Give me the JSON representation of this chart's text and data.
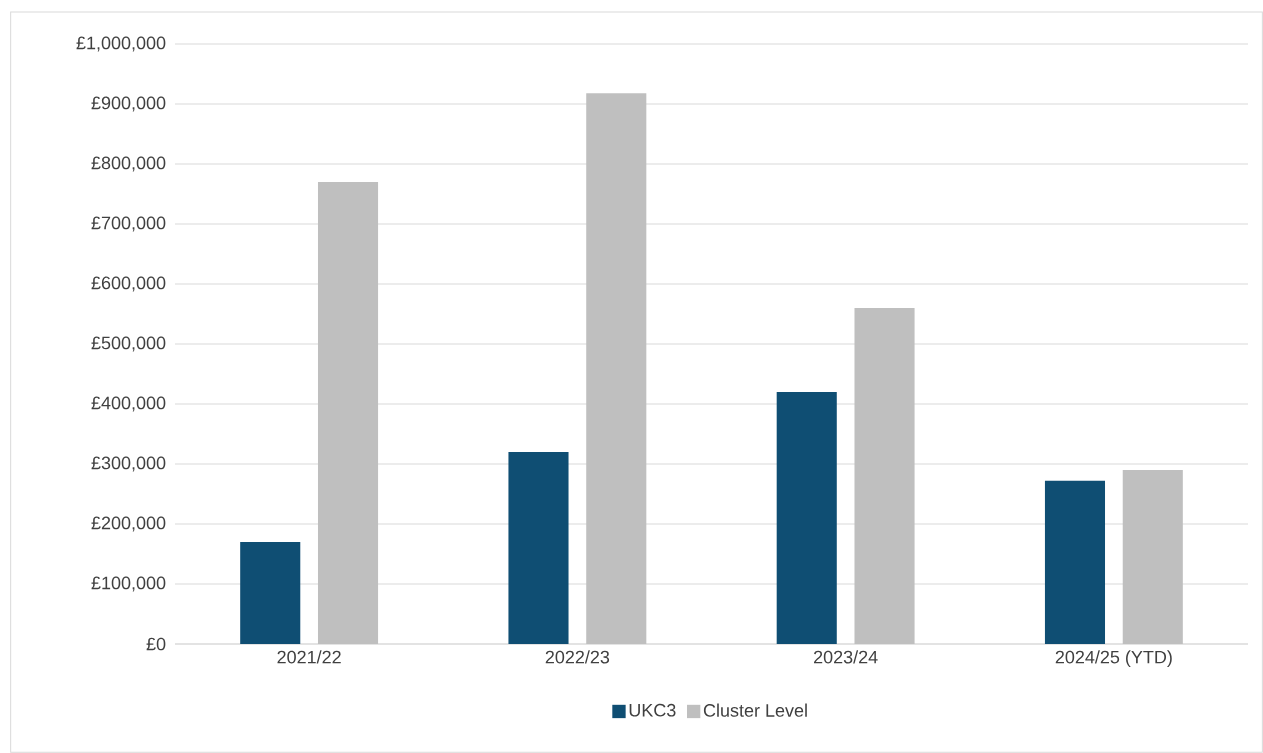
{
  "chart_data": {
    "type": "bar",
    "categories": [
      "2021/22",
      "2022/23",
      "2023/24",
      "2024/25 (YTD)"
    ],
    "series": [
      {
        "name": "UKC3",
        "color": "#0f4e73",
        "values": [
          170000,
          320000,
          420000,
          272000
        ]
      },
      {
        "name": "Cluster Level",
        "color": "#bfbfbf",
        "values": [
          770000,
          918000,
          560000,
          290000
        ]
      }
    ],
    "ylim": [
      0,
      1000000
    ],
    "yticks": [
      {
        "value": 0,
        "label": "£0"
      },
      {
        "value": 100000,
        "label": "£100,000"
      },
      {
        "value": 200000,
        "label": "£200,000"
      },
      {
        "value": 300000,
        "label": "£300,000"
      },
      {
        "value": 400000,
        "label": "£400,000"
      },
      {
        "value": 500000,
        "label": "£500,000"
      },
      {
        "value": 600000,
        "label": "£600,000"
      },
      {
        "value": 700000,
        "label": "£700,000"
      },
      {
        "value": 800000,
        "label": "£800,000"
      },
      {
        "value": 900000,
        "label": "£900,000"
      },
      {
        "value": 1000000,
        "label": "£1,000,000"
      }
    ],
    "grid": "y",
    "legend": "bottom"
  }
}
